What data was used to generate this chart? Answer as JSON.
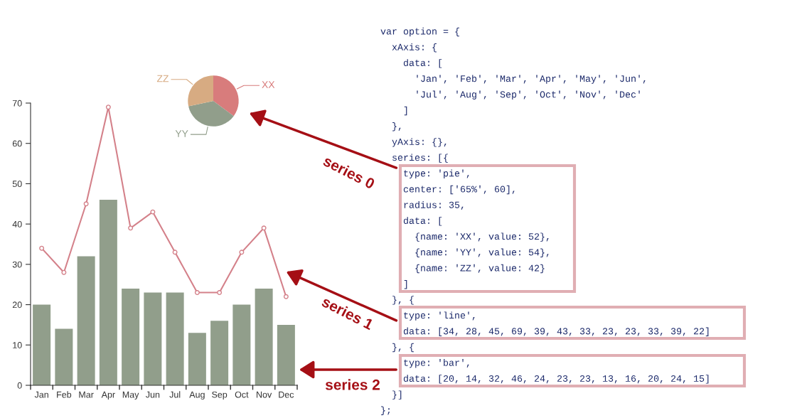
{
  "chart_data": [
    {
      "type": "pie",
      "categories": [
        "XX",
        "YY",
        "ZZ"
      ],
      "values": [
        35.1,
        36.5,
        28.4
      ],
      "colors": [
        "#d87c7c",
        "#919e8b",
        "#d7ab82"
      ],
      "annotations": [
        "series 0"
      ]
    },
    {
      "type": "bar",
      "categories": [
        "Jan",
        "Feb",
        "Mar",
        "Apr",
        "May",
        "Jun",
        "Jul",
        "Aug",
        "Sep",
        "Oct",
        "Nov",
        "Dec"
      ],
      "series": [
        {
          "type": "bar",
          "color": "#919e8b",
          "values": [
            20,
            14,
            32,
            46,
            24,
            23,
            23,
            13,
            16,
            20,
            24,
            15
          ]
        },
        {
          "type": "line",
          "color": "#d4818a",
          "values": [
            34,
            28,
            45,
            69,
            39,
            43,
            33,
            23,
            23,
            33,
            39,
            22
          ]
        }
      ],
      "ylim": [
        0,
        70
      ],
      "yticks": [
        0,
        10,
        20,
        30,
        40,
        50,
        60,
        70
      ],
      "grid": false,
      "legend": false,
      "marker": "circle",
      "line_style": "solid",
      "annotations": [
        "series 1",
        "series 2"
      ]
    },
    {
      "type": "other",
      "annotations": [
        "var option = {",
        "  xAxis: {",
        "    data: [",
        "      'Jan', 'Feb', 'Mar', 'Apr', 'May', 'Jun',",
        "      'Jul', 'Aug', 'Sep', 'Oct', 'Nov', 'Dec'",
        "    ]",
        "  },",
        "  yAxis: {},",
        "  series: [{",
        "    type: 'pie',",
        "    center: ['65%', 60],",
        "    radius: 35,",
        "    data: [",
        "      {name: 'XX', value: 52},",
        "      {name: 'YY', value: 54},",
        "      {name: 'ZZ', value: 42}",
        "    ]",
        "  }, {",
        "    type: 'line',",
        "    data: [34, 28, 45, 69, 39, 43, 33, 23, 23, 33, 39, 22]",
        "  }, {",
        "    type: 'bar',",
        "    data: [20, 14, 32, 46, 24, 23, 23, 13, 16, 20, 24, 15]",
        "  }]",
        "};"
      ]
    }
  ]
}
